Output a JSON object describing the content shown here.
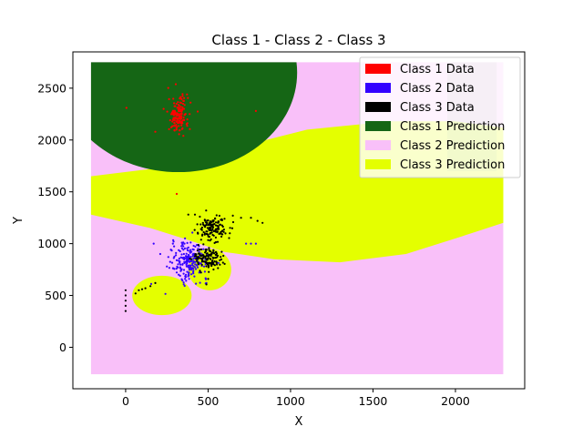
{
  "chart_data": {
    "type": "scatter",
    "title": "Class 1 - Class 2 - Class 3",
    "xlabel": "X",
    "ylabel": "Y",
    "xlim": [
      -320,
      2420
    ],
    "ylim": [
      -400,
      2850
    ],
    "xticks": [
      0,
      500,
      1000,
      1500,
      2000
    ],
    "yticks": [
      0,
      500,
      1000,
      1500,
      2000,
      2500
    ],
    "grid": false,
    "legend_position": "upper right",
    "series": [
      {
        "name": "Class 1 Data",
        "kind": "data",
        "color": "#ff0000",
        "centers": [
          [
            320,
            2240
          ]
        ],
        "x_spread": 30,
        "y_spread": 90,
        "count": 160,
        "points": [
          [
            310,
            1480
          ],
          [
            180,
            2080
          ],
          [
            230,
            2300
          ],
          [
            790,
            2280
          ],
          [
            5,
            2310
          ],
          [
            270,
            2190
          ],
          [
            350,
            2040
          ]
        ]
      },
      {
        "name": "Class 2 Data",
        "kind": "data",
        "color": "#3300ff",
        "centers": [
          [
            390,
            830
          ]
        ],
        "x_spread": 55,
        "y_spread": 90,
        "count": 220,
        "points": [
          [
            210,
            900
          ],
          [
            250,
            780
          ],
          [
            290,
            760
          ],
          [
            330,
            690
          ],
          [
            170,
            1000
          ],
          [
            730,
            1000
          ],
          [
            760,
            1000
          ],
          [
            790,
            1000
          ]
        ]
      },
      {
        "name": "Class 3 Data",
        "kind": "data",
        "color": "#000000",
        "centers": [
          [
            500,
            850
          ],
          [
            530,
            1150
          ]
        ],
        "x_spread": 45,
        "y_spread": 60,
        "count": 260,
        "points": [
          [
            0,
            350
          ],
          [
            0,
            400
          ],
          [
            0,
            450
          ],
          [
            0,
            500
          ],
          [
            0,
            550
          ],
          [
            60,
            520
          ],
          [
            80,
            550
          ],
          [
            100,
            560
          ],
          [
            120,
            570
          ],
          [
            150,
            590
          ],
          [
            180,
            620
          ],
          [
            380,
            1280
          ],
          [
            420,
            1280
          ],
          [
            450,
            1260
          ],
          [
            480,
            1230
          ],
          [
            500,
            1180
          ],
          [
            560,
            1200
          ],
          [
            600,
            1240
          ],
          [
            650,
            1270
          ],
          [
            700,
            1250
          ],
          [
            760,
            1250
          ],
          [
            800,
            1220
          ],
          [
            830,
            1200
          ]
        ]
      },
      {
        "name": "Class 1 Prediction",
        "kind": "region",
        "color": "#156615"
      },
      {
        "name": "Class 2 Prediction",
        "kind": "region",
        "color": "#f9c0f9"
      },
      {
        "name": "Class 3 Prediction",
        "kind": "region",
        "color": "#e4ff00"
      }
    ],
    "regions": {
      "class2_background": {
        "x": [
          -210,
          2290
        ],
        "y": [
          -260,
          2750
        ]
      },
      "class3_large_blob": {
        "polygon": [
          [
            -210,
            1650
          ],
          [
            150,
            1720
          ],
          [
            600,
            1900
          ],
          [
            1100,
            2100
          ],
          [
            1600,
            2180
          ],
          [
            2000,
            2180
          ],
          [
            2290,
            2120
          ],
          [
            2290,
            1200
          ],
          [
            2000,
            1050
          ],
          [
            1700,
            900
          ],
          [
            1300,
            820
          ],
          [
            900,
            850
          ],
          [
            600,
            920
          ],
          [
            350,
            1050
          ],
          [
            150,
            1150
          ],
          [
            -210,
            1280
          ]
        ]
      },
      "class3_small_blob_left": {
        "center": [
          220,
          500
        ],
        "rx": 180,
        "ry": 190
      },
      "class3_small_blob_mid": {
        "center": [
          510,
          750
        ],
        "rx": 130,
        "ry": 200
      },
      "class1_ellipse": {
        "center": [
          320,
          2650
        ],
        "rx": 720,
        "ry": 960
      },
      "class1_right_strip": {
        "x": [
          1950,
          2250
        ],
        "y": [
          1700,
          2750
        ]
      }
    }
  }
}
